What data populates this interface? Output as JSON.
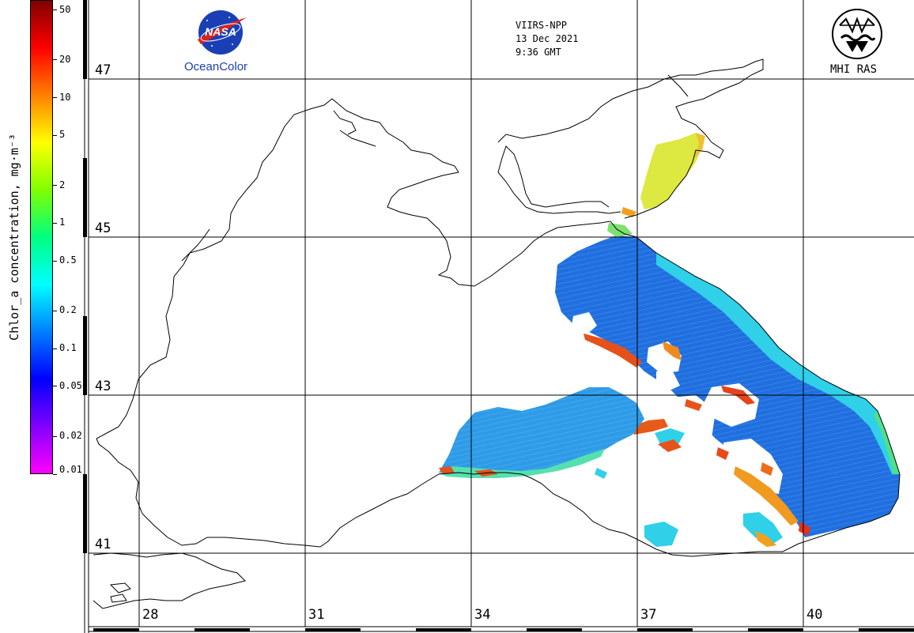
{
  "map": {
    "sensor": "VIIRS-NPP",
    "date": "13 Dec 2021",
    "time": "9:36 GMT",
    "logo_left_text": "OceanColor",
    "logo_left_mark": "NASA",
    "logo_right_text": "MHI RAS",
    "lat_labels": [
      "47",
      "45",
      "43",
      "41"
    ],
    "lon_labels": [
      "28",
      "31",
      "34",
      "37",
      "40"
    ],
    "colors": {
      "coastline": "#000000",
      "land": "#ffffff",
      "grid": "#000000",
      "nasa_blue": "#1a3fb5",
      "nasa_red": "#e0201b"
    }
  },
  "colorbar": {
    "title": "Chlor_a concentration, mg·m⁻³",
    "ticks": [
      "50",
      "20",
      "10",
      "5",
      "2",
      "1",
      "0.5",
      "0.2",
      "0.1",
      "0.05",
      "0.02",
      "0.01"
    ],
    "scale": "log",
    "range": [
      0.01,
      60
    ],
    "colors": [
      "#ff00ff",
      "#8000ff",
      "#0000ff",
      "#0080ff",
      "#00ffff",
      "#00ff80",
      "#80ff00",
      "#ffff00",
      "#ff8000",
      "#ff0000",
      "#800000"
    ]
  }
}
